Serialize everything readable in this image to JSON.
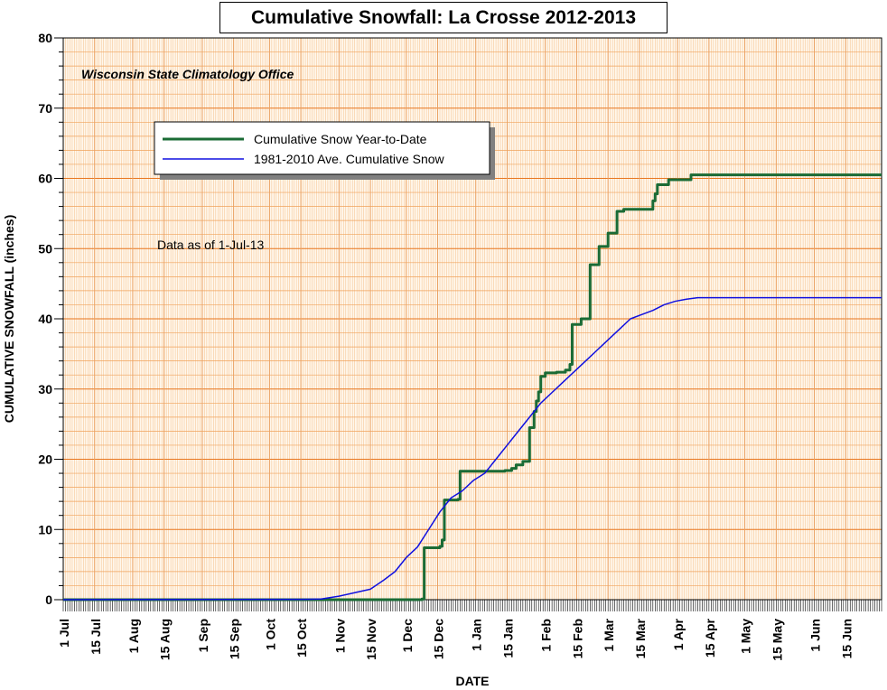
{
  "chart_data": {
    "type": "line",
    "title": "Cumulative Snowfall: La Crosse 2012-2013",
    "subtitle": "Wisconsin State Climatology Office",
    "annotation": "Data as of 1-Jul-13",
    "xlabel": "DATE",
    "ylabel": "CUMULATIVE SNOWFALL (inches)",
    "x_unit": "day of season (0 = 1 Jul 2012)",
    "xlim": [
      0,
      365
    ],
    "ylim": [
      0,
      80
    ],
    "y_ticks": [
      "0",
      "10",
      "20",
      "30",
      "40",
      "50",
      "60",
      "70",
      "80"
    ],
    "x_ticks": [
      {
        "label": "1 Jul",
        "day": 0
      },
      {
        "label": "15 Jul",
        "day": 14
      },
      {
        "label": "1 Aug",
        "day": 31
      },
      {
        "label": "15 Aug",
        "day": 45
      },
      {
        "label": "1 Sep",
        "day": 62
      },
      {
        "label": "15 Sep",
        "day": 76
      },
      {
        "label": "1 Oct",
        "day": 92
      },
      {
        "label": "15 Oct",
        "day": 106
      },
      {
        "label": "1 Nov",
        "day": 123
      },
      {
        "label": "15 Nov",
        "day": 137
      },
      {
        "label": "1 Dec",
        "day": 153
      },
      {
        "label": "15 Dec",
        "day": 167
      },
      {
        "label": "1 Jan",
        "day": 184
      },
      {
        "label": "15 Jan",
        "day": 198
      },
      {
        "label": "1 Feb",
        "day": 215
      },
      {
        "label": "15 Feb",
        "day": 229
      },
      {
        "label": "1 Mar",
        "day": 243
      },
      {
        "label": "15 Mar",
        "day": 257
      },
      {
        "label": "1 Apr",
        "day": 274
      },
      {
        "label": "15 Apr",
        "day": 288
      },
      {
        "label": "1 May",
        "day": 304
      },
      {
        "label": "15 May",
        "day": 318
      },
      {
        "label": "1 Jun",
        "day": 335
      },
      {
        "label": "15 Jun",
        "day": 349
      }
    ],
    "grid": true,
    "legend_position": "top-left",
    "series": [
      {
        "name": "Cumulative Snow Year-to-Date",
        "color": "#1a6b35",
        "line": "step",
        "points": [
          [
            0,
            0
          ],
          [
            135,
            0
          ],
          [
            160,
            0.1
          ],
          [
            161,
            7.4
          ],
          [
            168,
            7.6
          ],
          [
            169,
            8.5
          ],
          [
            170,
            14.2
          ],
          [
            176,
            14.3
          ],
          [
            177,
            18.3
          ],
          [
            197,
            18.4
          ],
          [
            200,
            18.7
          ],
          [
            202,
            19.2
          ],
          [
            205,
            19.7
          ],
          [
            208,
            24.5
          ],
          [
            210,
            26.8
          ],
          [
            211,
            28.3
          ],
          [
            212,
            29.6
          ],
          [
            213,
            31.8
          ],
          [
            215,
            32.3
          ],
          [
            220,
            32.4
          ],
          [
            224,
            32.7
          ],
          [
            226,
            33.5
          ],
          [
            227,
            39.2
          ],
          [
            231,
            40.0
          ],
          [
            235,
            47.7
          ],
          [
            239,
            50.3
          ],
          [
            243,
            52.2
          ],
          [
            247,
            55.3
          ],
          [
            250,
            55.6
          ],
          [
            262,
            55.6
          ],
          [
            263,
            56.8
          ],
          [
            264,
            57.8
          ],
          [
            265,
            59.1
          ],
          [
            270,
            59.8
          ],
          [
            280,
            60.5
          ],
          [
            365,
            60.5
          ]
        ]
      },
      {
        "name": "1981-2010 Ave. Cumulative Snow",
        "color": "#1010e0",
        "line": "smooth",
        "points": [
          [
            0,
            0
          ],
          [
            108,
            0.05
          ],
          [
            115,
            0.1
          ],
          [
            123,
            0.5
          ],
          [
            130,
            1.0
          ],
          [
            137,
            1.5
          ],
          [
            143,
            2.8
          ],
          [
            148,
            4.0
          ],
          [
            153,
            6.0
          ],
          [
            158,
            7.5
          ],
          [
            163,
            10.0
          ],
          [
            168,
            12.5
          ],
          [
            173,
            14.5
          ],
          [
            178,
            15.5
          ],
          [
            183,
            17.0
          ],
          [
            188,
            18.0
          ],
          [
            193,
            20.0
          ],
          [
            198,
            22.0
          ],
          [
            203,
            24.0
          ],
          [
            208,
            26.0
          ],
          [
            213,
            28.0
          ],
          [
            218,
            29.5
          ],
          [
            223,
            31.0
          ],
          [
            228,
            32.5
          ],
          [
            233,
            34.0
          ],
          [
            238,
            35.5
          ],
          [
            243,
            37.0
          ],
          [
            248,
            38.5
          ],
          [
            253,
            40.0
          ],
          [
            258,
            40.6
          ],
          [
            263,
            41.2
          ],
          [
            268,
            42.0
          ],
          [
            273,
            42.5
          ],
          [
            278,
            42.8
          ],
          [
            283,
            43.0
          ],
          [
            365,
            43.0
          ]
        ]
      }
    ]
  }
}
